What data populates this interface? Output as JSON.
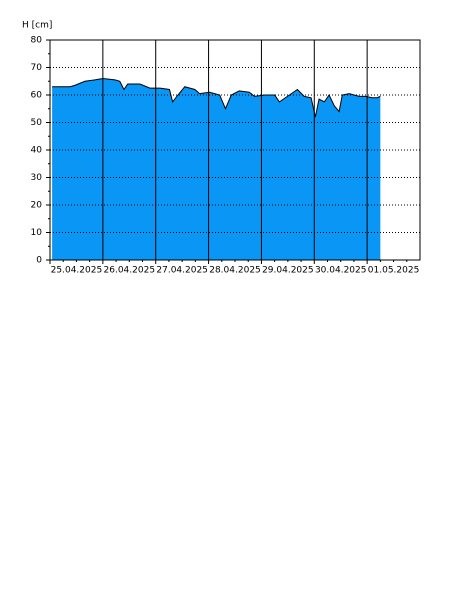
{
  "chart_data": {
    "type": "area",
    "y_label": "H [cm]",
    "x": [
      0.04,
      0.19,
      0.38,
      0.47,
      0.66,
      0.85,
      1.0,
      1.23,
      1.32,
      1.4,
      1.47,
      1.7,
      1.89,
      2.08,
      2.26,
      2.32,
      2.42,
      2.55,
      2.74,
      2.83,
      3.02,
      3.21,
      3.32,
      3.43,
      3.58,
      3.77,
      3.87,
      4.06,
      4.25,
      4.34,
      4.53,
      4.68,
      4.81,
      4.94,
      5.02,
      5.09,
      5.19,
      5.28,
      5.38,
      5.47,
      5.53,
      5.66,
      5.85,
      5.98,
      6.09,
      6.19,
      6.25
    ],
    "values": [
      63,
      63,
      63,
      63.5,
      65,
      65.5,
      66,
      65.5,
      65,
      62,
      64,
      64,
      62.5,
      62.5,
      62,
      57.5,
      60,
      63,
      62,
      60.5,
      61,
      60,
      55,
      60,
      61.5,
      61,
      59.5,
      60,
      60,
      57.5,
      60,
      62,
      59.5,
      59,
      52,
      58.5,
      57.5,
      60,
      56,
      54,
      60,
      60.5,
      59.5,
      59.5,
      59,
      59,
      59.5
    ],
    "color": "#0a96f5",
    "xlim": [
      0,
      7
    ],
    "xticks": [
      {
        "value": 0,
        "label": "25.04.2025"
      },
      {
        "value": 1,
        "label": "26.04.2025"
      },
      {
        "value": 2,
        "label": "27.04.2025"
      },
      {
        "value": 3,
        "label": "28.04.2025"
      },
      {
        "value": 4,
        "label": "29.04.2025"
      },
      {
        "value": 5,
        "label": "30.04.2025"
      },
      {
        "value": 6,
        "label": "01.05.2025"
      }
    ],
    "ylim": [
      0,
      80
    ],
    "yticks": [
      0,
      10,
      20,
      30,
      40,
      50,
      60,
      70,
      80
    ],
    "grid": true
  }
}
